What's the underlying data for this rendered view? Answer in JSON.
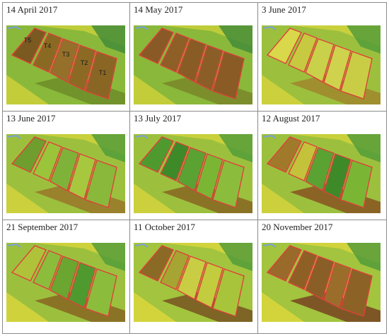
{
  "panels": [
    {
      "date": "14 April 2017",
      "labels": [
        "T5",
        "T4",
        "T3",
        "T2",
        "T1"
      ],
      "plotFills": [
        "#7a5a20",
        "#8a6a22",
        "#94702a",
        "#8c6a24",
        "#8a6624"
      ],
      "bg": [
        "#8ab83a",
        "#c8cf3a",
        "#6f8f2a",
        "#3f8a3a"
      ]
    },
    {
      "date": "14 May 2017",
      "labels": [],
      "plotFills": [
        "#8a5a26",
        "#8e5f27",
        "#8a5c25",
        "#8c5e27",
        "#8a5b25"
      ],
      "bg": [
        "#8ab83a",
        "#c8cf3a",
        "#7a8a2a",
        "#3f8a3a"
      ]
    },
    {
      "date": "3 June 2017",
      "labels": [],
      "plotFills": [
        "#d8d84a",
        "#c7c940",
        "#c9d049",
        "#cfd24c",
        "#c9cd45"
      ],
      "bg": [
        "#9cc03e",
        "#d0d23c",
        "#a08a2e",
        "#4f9a3a"
      ]
    },
    {
      "date": "13 June 2017",
      "labels": [],
      "plotFills": [
        "#6f9e2e",
        "#9ac43a",
        "#7fb238",
        "#a7c83e",
        "#8ab83a"
      ],
      "bg": [
        "#9cc03e",
        "#d0d23c",
        "#9a7a2a",
        "#4f9a3a"
      ]
    },
    {
      "date": "13 July 2017",
      "labels": [],
      "plotFills": [
        "#4f9a2e",
        "#3f8a28",
        "#5aa232",
        "#7ab634",
        "#8cbc3c"
      ],
      "bg": [
        "#9cc03e",
        "#d0d23c",
        "#8a6a24",
        "#4f9a3a"
      ]
    },
    {
      "date": "12 August 2017",
      "labels": [],
      "plotFills": [
        "#a07a2a",
        "#c4c23a",
        "#5aa232",
        "#3f8a28",
        "#7ab634"
      ],
      "bg": [
        "#9cc03e",
        "#d0d23c",
        "#8a5a22",
        "#4f9a3a"
      ]
    },
    {
      "date": "21 September 2017",
      "labels": [],
      "plotFills": [
        "#b0c23a",
        "#8cbc3c",
        "#6aa630",
        "#4f9a2e",
        "#8cbc3c"
      ],
      "bg": [
        "#9cc03e",
        "#d6d43c",
        "#8a6a24",
        "#4f9a3a"
      ]
    },
    {
      "date": "11 October 2017",
      "labels": [],
      "plotFills": [
        "#8a6a24",
        "#a6a432",
        "#c8cd44",
        "#c3cb3e",
        "#a8c43a"
      ],
      "bg": [
        "#a2c43e",
        "#d8d63c",
        "#7a5a22",
        "#4f9a3a"
      ]
    },
    {
      "date": "20 November 2017",
      "labels": [],
      "plotFills": [
        "#9a6a2a",
        "#8e6026",
        "#8a5e27",
        "#9a6e2a",
        "#8c6227"
      ],
      "bg": [
        "#a2c43e",
        "#d8d63c",
        "#7a4a22",
        "#4f9a3a"
      ]
    }
  ],
  "outlineColor": "#e0403a"
}
